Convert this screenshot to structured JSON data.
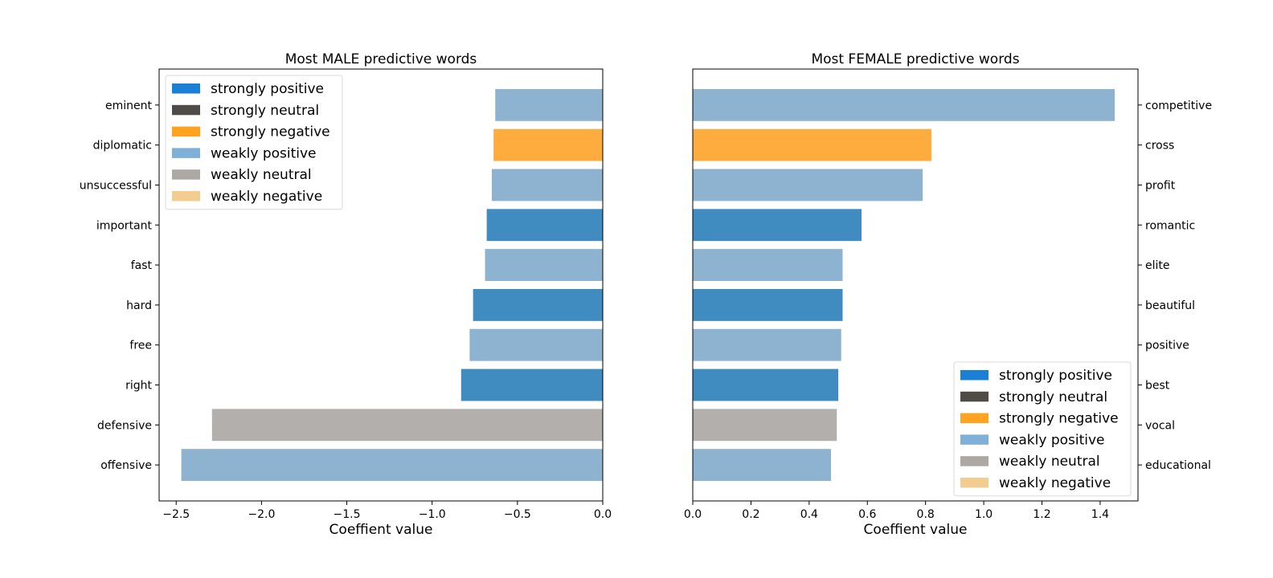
{
  "legend_labels": [
    "strongly positive",
    "strongly neutral",
    "strongly negative",
    "weakly positive",
    "weakly neutral",
    "weakly negative"
  ],
  "category_colors": {
    "strongly positive": "#1f77b4",
    "strongly neutral": "#3c3a38",
    "strongly negative": "#ff9d1c",
    "weakly positive": "#7aa6c9",
    "weakly neutral": "#a6a19d",
    "weakly negative": "#f5c98a"
  },
  "legend_swatch_colors": [
    "#1a80d6",
    "#4f4b47",
    "#ffa321",
    "#7fb0d8",
    "#aea8a4",
    "#f3cd90"
  ],
  "chart_data": [
    {
      "type": "bar",
      "orientation": "horizontal",
      "title": "Most MALE predictive words",
      "xlabel": "Coeffient value",
      "xlim": [
        -2.6,
        0.0
      ],
      "xticks": [
        "−2.5",
        "−2.0",
        "−1.5",
        "−1.0",
        "−0.5",
        "0.0"
      ],
      "xtick_values": [
        -2.5,
        -2.0,
        -1.5,
        -1.0,
        -0.5,
        0.0
      ],
      "label_side": "left",
      "legend_position": "upper left",
      "bars": [
        {
          "word": "eminent",
          "value": -0.63,
          "category": "weakly positive"
        },
        {
          "word": "diplomatic",
          "value": -0.64,
          "category": "strongly negative"
        },
        {
          "word": "unsuccessful",
          "value": -0.65,
          "category": "weakly positive"
        },
        {
          "word": "important",
          "value": -0.68,
          "category": "strongly positive"
        },
        {
          "word": "fast",
          "value": -0.69,
          "category": "weakly positive"
        },
        {
          "word": "hard",
          "value": -0.76,
          "category": "strongly positive"
        },
        {
          "word": "free",
          "value": -0.78,
          "category": "weakly positive"
        },
        {
          "word": "right",
          "value": -0.83,
          "category": "strongly positive"
        },
        {
          "word": "defensive",
          "value": -2.29,
          "category": "weakly neutral"
        },
        {
          "word": "offensive",
          "value": -2.47,
          "category": "weakly positive"
        }
      ]
    },
    {
      "type": "bar",
      "orientation": "horizontal",
      "title": "Most FEMALE predictive words",
      "xlabel": "Coeffient value",
      "xlim": [
        0.0,
        1.53
      ],
      "xticks": [
        "0.0",
        "0.2",
        "0.4",
        "0.6",
        "0.8",
        "1.0",
        "1.2",
        "1.4"
      ],
      "xtick_values": [
        0.0,
        0.2,
        0.4,
        0.6,
        0.8,
        1.0,
        1.2,
        1.4
      ],
      "label_side": "right",
      "legend_position": "lower right",
      "bars": [
        {
          "word": "competitive",
          "value": 1.45,
          "category": "weakly positive"
        },
        {
          "word": "cross",
          "value": 0.82,
          "category": "strongly negative"
        },
        {
          "word": "profit",
          "value": 0.79,
          "category": "weakly positive"
        },
        {
          "word": "romantic",
          "value": 0.58,
          "category": "strongly positive"
        },
        {
          "word": "elite",
          "value": 0.515,
          "category": "weakly positive"
        },
        {
          "word": "beautiful",
          "value": 0.515,
          "category": "strongly positive"
        },
        {
          "word": "positive",
          "value": 0.51,
          "category": "weakly positive"
        },
        {
          "word": "best",
          "value": 0.5,
          "category": "strongly positive"
        },
        {
          "word": "vocal",
          "value": 0.495,
          "category": "weakly neutral"
        },
        {
          "word": "educational",
          "value": 0.475,
          "category": "weakly positive"
        }
      ]
    }
  ]
}
